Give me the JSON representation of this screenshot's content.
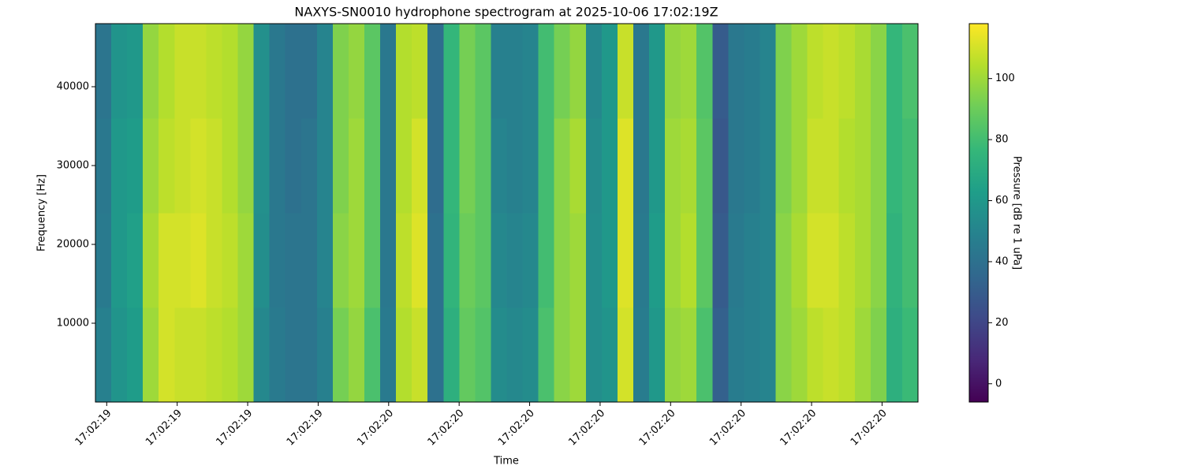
{
  "chart_data": {
    "type": "heatmap",
    "title": "NAXYS-SN0010 hydrophone spectrogram at 2025-10-06 17:02:19Z",
    "xlabel": "Time",
    "ylabel": "Frequency [Hz]",
    "colorbar_label": "Pressure [dB re 1 uPa]",
    "colormap": "viridis",
    "xlim": [
      19.584,
      20.751
    ],
    "xticks": [
      {
        "value": 19.6,
        "label": "17:02:19"
      },
      {
        "value": 19.7,
        "label": "17:02:19"
      },
      {
        "value": 19.8,
        "label": "17:02:19"
      },
      {
        "value": 19.9,
        "label": "17:02:19"
      },
      {
        "value": 20.0,
        "label": "17:02:20"
      },
      {
        "value": 20.1,
        "label": "17:02:20"
      },
      {
        "value": 20.2,
        "label": "17:02:20"
      },
      {
        "value": 20.3,
        "label": "17:02:20"
      },
      {
        "value": 20.4,
        "label": "17:02:20"
      },
      {
        "value": 20.5,
        "label": "17:02:20"
      },
      {
        "value": 20.6,
        "label": "17:02:20"
      },
      {
        "value": 20.7,
        "label": "17:02:20"
      }
    ],
    "ylim": [
      0,
      48000
    ],
    "yticks": [
      10000,
      20000,
      30000,
      40000
    ],
    "ybins": [
      0,
      12000,
      24000,
      36000,
      48000
    ],
    "clim": [
      -6,
      118
    ],
    "cticks": [
      0,
      20,
      40,
      60,
      80,
      100
    ],
    "z": [
      [
        48,
        58,
        62,
        100,
        110,
        108,
        108,
        106,
        104,
        100,
        52,
        45,
        42,
        42,
        48,
        92,
        98,
        82,
        45,
        104,
        108,
        40,
        72,
        88,
        84,
        54,
        52,
        54,
        82,
        96,
        100,
        55,
        58,
        110,
        46,
        60,
        98,
        100,
        82,
        32,
        46,
        48,
        50,
        96,
        100,
        106,
        108,
        106,
        100,
        94,
        72,
        78
      ],
      [
        45,
        60,
        64,
        102,
        110,
        110,
        112,
        108,
        106,
        100,
        55,
        44,
        42,
        42,
        50,
        96,
        100,
        86,
        44,
        106,
        112,
        40,
        75,
        90,
        86,
        52,
        50,
        52,
        80,
        96,
        100,
        55,
        60,
        112,
        45,
        62,
        100,
        104,
        86,
        30,
        45,
        48,
        50,
        96,
        102,
        110,
        110,
        106,
        102,
        96,
        74,
        80
      ],
      [
        44,
        60,
        62,
        100,
        106,
        108,
        110,
        108,
        104,
        98,
        56,
        44,
        40,
        42,
        50,
        94,
        100,
        86,
        44,
        104,
        110,
        38,
        76,
        92,
        86,
        50,
        48,
        50,
        80,
        96,
        102,
        54,
        60,
        112,
        44,
        60,
        100,
        102,
        86,
        28,
        44,
        46,
        50,
        94,
        100,
        108,
        108,
        104,
        102,
        96,
        76,
        80
      ],
      [
        42,
        58,
        60,
        98,
        104,
        108,
        108,
        106,
        104,
        98,
        56,
        44,
        40,
        40,
        50,
        94,
        98,
        86,
        44,
        104,
        106,
        38,
        76,
        92,
        86,
        48,
        48,
        50,
        80,
        92,
        98,
        52,
        60,
        108,
        44,
        60,
        98,
        100,
        84,
        30,
        44,
        46,
        50,
        94,
        100,
        106,
        108,
        106,
        102,
        96,
        76,
        82
      ]
    ]
  }
}
